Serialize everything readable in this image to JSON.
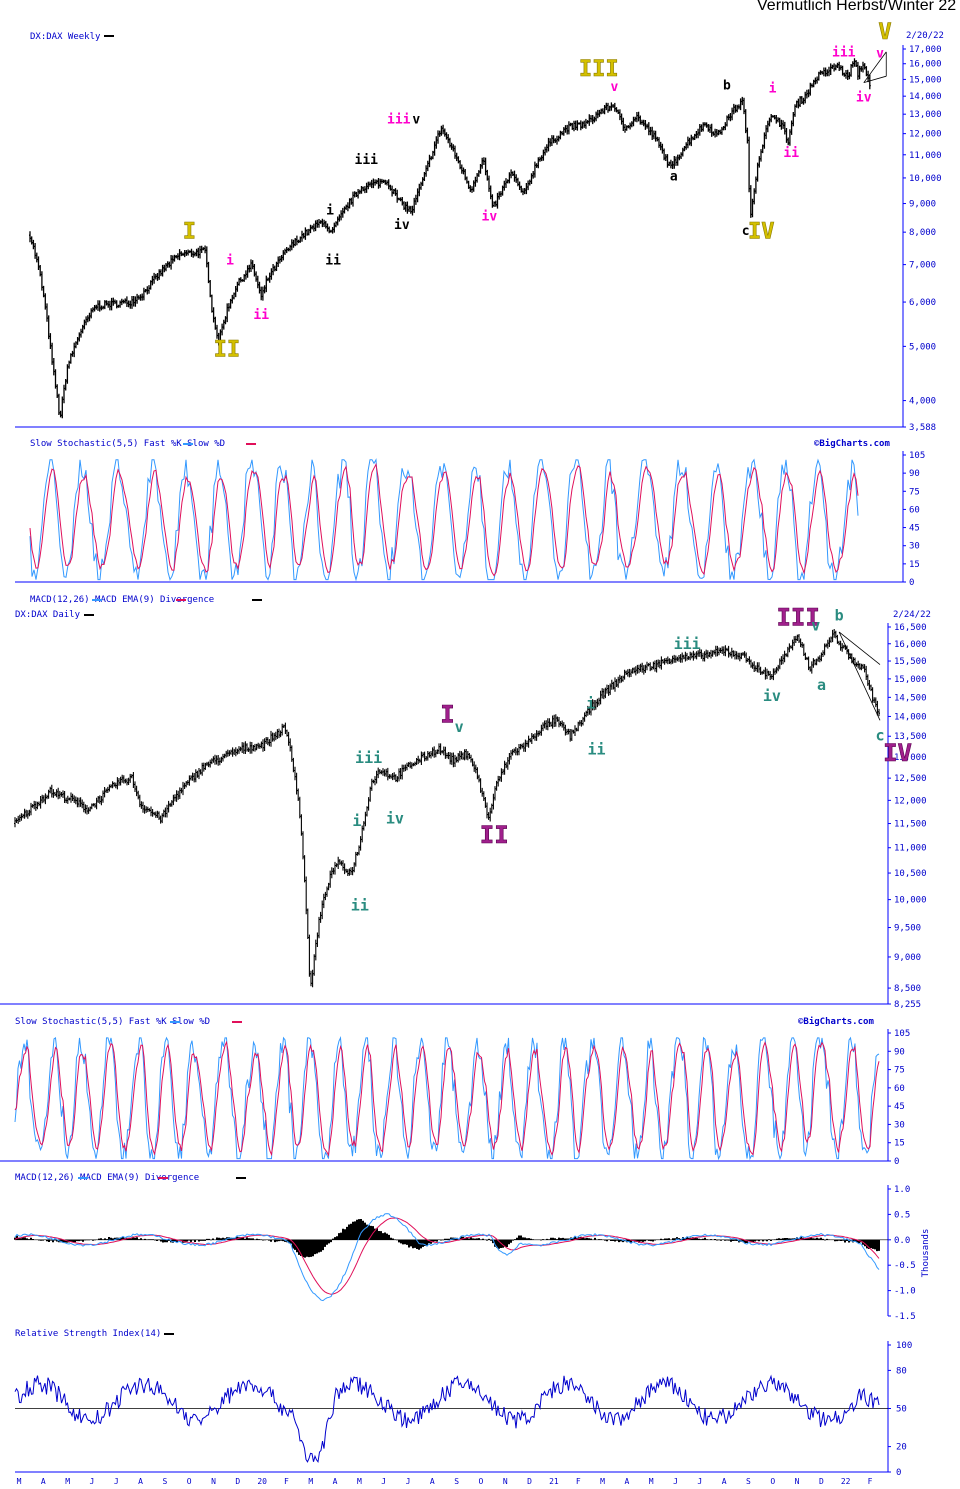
{
  "header": {
    "title": "Vermutlich Herbst/Winter 22"
  },
  "colors": {
    "price": "#000000",
    "fast": "#3399ff",
    "slow": "#e0105a",
    "grid": "#0000ff",
    "axis": "#0000cc",
    "wave_yellow": "#c8b400",
    "wave_magenta": "#ff00cc",
    "wave_teal": "#2a8c80",
    "wave_purple": "#a0208c"
  },
  "chart_data": [
    {
      "type": "line",
      "title": "DX:DAX Weekly",
      "date": "2/20/22",
      "scale": "log",
      "ylim": [
        3588,
        17000
      ],
      "y_ticks": [
        "17,000",
        "16,000",
        "15,000",
        "14,000",
        "13,000",
        "12,000",
        "11,000",
        "10,000",
        "9,000",
        "8,000",
        "7,000",
        "6,000",
        "5,000",
        "4,000",
        "3,588"
      ],
      "x_start": 2008.7,
      "x_end": 2022.14,
      "series": [
        {
          "values": [
            [
              2008.7,
              7900
            ],
            [
              2008.85,
              6800
            ],
            [
              2008.95,
              5800
            ],
            [
              2009.05,
              4700
            ],
            [
              2009.18,
              3700
            ],
            [
              2009.3,
              4600
            ],
            [
              2009.5,
              5300
            ],
            [
              2009.75,
              5900
            ],
            [
              2010.0,
              5950
            ],
            [
              2010.3,
              6000
            ],
            [
              2010.5,
              6200
            ],
            [
              2010.85,
              6900
            ],
            [
              2011.1,
              7300
            ],
            [
              2011.5,
              7400
            ],
            [
              2011.62,
              5700
            ],
            [
              2011.72,
              5100
            ],
            [
              2011.85,
              5800
            ],
            [
              2012.0,
              6400
            ],
            [
              2012.25,
              7000
            ],
            [
              2012.4,
              6100
            ],
            [
              2012.5,
              6600
            ],
            [
              2012.8,
              7400
            ],
            [
              2013.0,
              7800
            ],
            [
              2013.4,
              8400
            ],
            [
              2013.5,
              7900
            ],
            [
              2013.8,
              9000
            ],
            [
              2014.0,
              9600
            ],
            [
              2014.4,
              9900
            ],
            [
              2014.6,
              9100
            ],
            [
              2014.8,
              8700
            ],
            [
              2015.0,
              10000
            ],
            [
              2015.28,
              12300
            ],
            [
              2015.5,
              11000
            ],
            [
              2015.75,
              9500
            ],
            [
              2015.95,
              10800
            ],
            [
              2016.1,
              8800
            ],
            [
              2016.4,
              10200
            ],
            [
              2016.6,
              9300
            ],
            [
              2016.8,
              10600
            ],
            [
              2017.0,
              11500
            ],
            [
              2017.3,
              12300
            ],
            [
              2017.6,
              12500
            ],
            [
              2017.85,
              13200
            ],
            [
              2018.05,
              13500
            ],
            [
              2018.2,
              12200
            ],
            [
              2018.4,
              12900
            ],
            [
              2018.7,
              11800
            ],
            [
              2018.95,
              10400
            ],
            [
              2019.2,
              11500
            ],
            [
              2019.5,
              12500
            ],
            [
              2019.7,
              11900
            ],
            [
              2019.95,
              13200
            ],
            [
              2020.1,
              13700
            ],
            [
              2020.18,
              11500
            ],
            [
              2020.22,
              8400
            ],
            [
              2020.35,
              10700
            ],
            [
              2020.5,
              12400
            ],
            [
              2020.6,
              13000
            ],
            [
              2020.75,
              12300
            ],
            [
              2020.82,
              11500
            ],
            [
              2020.95,
              13500
            ],
            [
              2021.1,
              14000
            ],
            [
              2021.3,
              15200
            ],
            [
              2021.5,
              15600
            ],
            [
              2021.62,
              15900
            ],
            [
              2021.78,
              15100
            ],
            [
              2021.88,
              16200
            ],
            [
              2021.95,
              15300
            ],
            [
              2022.02,
              16000
            ],
            [
              2022.1,
              15300
            ],
            [
              2022.14,
              14500
            ]
          ]
        }
      ],
      "annotations": [
        {
          "text": "I",
          "t": 2011.25,
          "v": 7800,
          "style": "yellow-lg"
        },
        {
          "text": "II",
          "t": 2011.85,
          "v": 4800,
          "style": "yellow-lg"
        },
        {
          "text": "III",
          "t": 2017.8,
          "v": 15200,
          "style": "yellow-lg"
        },
        {
          "text": "IV",
          "t": 2020.4,
          "v": 7800,
          "style": "yellow-lg"
        },
        {
          "text": "V",
          "t": 2022.38,
          "v": 17700,
          "style": "yellow-lg"
        },
        {
          "text": "i",
          "t": 2011.9,
          "v": 7000,
          "style": "magenta"
        },
        {
          "text": "ii",
          "t": 2012.4,
          "v": 5600,
          "style": "magenta"
        },
        {
          "text": "iii",
          "t": 2014.6,
          "v": 12500,
          "style": "magenta"
        },
        {
          "text": "iv",
          "t": 2016.05,
          "v": 8400,
          "style": "magenta"
        },
        {
          "text": "v",
          "t": 2018.05,
          "v": 14300,
          "style": "magenta"
        },
        {
          "text": "i",
          "t": 2020.58,
          "v": 14200,
          "style": "magenta"
        },
        {
          "text": "ii",
          "t": 2020.88,
          "v": 10900,
          "style": "magenta"
        },
        {
          "text": "iii",
          "t": 2021.72,
          "v": 16500,
          "style": "magenta"
        },
        {
          "text": "iv",
          "t": 2022.04,
          "v": 13700,
          "style": "magenta"
        },
        {
          "text": "v",
          "t": 2022.3,
          "v": 16400,
          "style": "magenta"
        },
        {
          "text": "i",
          "t": 2013.5,
          "v": 8600,
          "style": "black"
        },
        {
          "text": "ii",
          "t": 2013.55,
          "v": 7000,
          "style": "black"
        },
        {
          "text": "iii",
          "t": 2014.08,
          "v": 10600,
          "style": "black"
        },
        {
          "text": "iv",
          "t": 2014.65,
          "v": 8100,
          "style": "black"
        },
        {
          "text": "v",
          "t": 2014.88,
          "v": 12500,
          "style": "black"
        },
        {
          "text": "a",
          "t": 2019.0,
          "v": 9900,
          "style": "black"
        },
        {
          "text": "b",
          "t": 2019.85,
          "v": 14400,
          "style": "black"
        },
        {
          "text": "c",
          "t": 2020.15,
          "v": 7900,
          "style": "black"
        }
      ]
    },
    {
      "type": "line",
      "title": "Slow Stochastic(5,5) Fast %K Slow %D",
      "legend": [
        "Fast %K",
        "Slow %D"
      ],
      "source": "©BigCharts.com",
      "ylim": [
        0,
        105
      ],
      "y_ticks": [
        "105",
        "90",
        "75",
        "60",
        "45",
        "30",
        "15",
        "0"
      ]
    },
    {
      "type": "line",
      "title": "DX:DAX Daily",
      "date": "2/24/22",
      "scale": "log",
      "ylim": [
        8255,
        16500
      ],
      "y_ticks": [
        "16,500",
        "16,000",
        "15,500",
        "15,000",
        "14,500",
        "14,000",
        "13,500",
        "13,000",
        "12,500",
        "12,000",
        "11,500",
        "11,000",
        "10,500",
        "10,000",
        "9,500",
        "9,000",
        "8,500",
        "8,255"
      ],
      "macd_header": "MACD(12,26) MACD EMA(9) Divergence",
      "x_start": 2019.2,
      "x_end": 2022.16,
      "series": [
        {
          "values": [
            [
              2019.2,
              11500
            ],
            [
              2019.32,
              12200
            ],
            [
              2019.4,
              12000
            ],
            [
              2019.45,
              11800
            ],
            [
              2019.55,
              12400
            ],
            [
              2019.6,
              12500
            ],
            [
              2019.63,
              11900
            ],
            [
              2019.7,
              11600
            ],
            [
              2019.75,
              12100
            ],
            [
              2019.85,
              12800
            ],
            [
              2019.98,
              13200
            ],
            [
              2020.05,
              13300
            ],
            [
              2020.12,
              13700
            ],
            [
              2020.14,
              13300
            ],
            [
              2020.17,
              12000
            ],
            [
              2020.19,
              10500
            ],
            [
              2020.21,
              8450
            ],
            [
              2020.24,
              9600
            ],
            [
              2020.27,
              10300
            ],
            [
              2020.3,
              10700
            ],
            [
              2020.35,
              10500
            ],
            [
              2020.38,
              11100
            ],
            [
              2020.42,
              12400
            ],
            [
              2020.45,
              12700
            ],
            [
              2020.5,
              12500
            ],
            [
              2020.55,
              12800
            ],
            [
              2020.6,
              13000
            ],
            [
              2020.65,
              13200
            ],
            [
              2020.7,
              12900
            ],
            [
              2020.75,
              13100
            ],
            [
              2020.78,
              12600
            ],
            [
              2020.82,
              11600
            ],
            [
              2020.85,
              12400
            ],
            [
              2020.9,
              13100
            ],
            [
              2020.95,
              13300
            ],
            [
              2021.0,
              13700
            ],
            [
              2021.05,
              13900
            ],
            [
              2021.1,
              13500
            ],
            [
              2021.15,
              14000
            ],
            [
              2021.2,
              14500
            ],
            [
              2021.3,
              15200
            ],
            [
              2021.4,
              15400
            ],
            [
              2021.45,
              15600
            ],
            [
              2021.5,
              15600
            ],
            [
              2021.58,
              15700
            ],
            [
              2021.63,
              15800
            ],
            [
              2021.7,
              15600
            ],
            [
              2021.75,
              15200
            ],
            [
              2021.79,
              15100
            ],
            [
              2021.83,
              15600
            ],
            [
              2021.88,
              16200
            ],
            [
              2021.92,
              15300
            ],
            [
              2021.96,
              15700
            ],
            [
              2022.0,
              16300
            ],
            [
              2022.03,
              15900
            ],
            [
              2022.07,
              15500
            ],
            [
              2022.11,
              15200
            ],
            [
              2022.13,
              14600
            ],
            [
              2022.16,
              14000
            ]
          ]
        }
      ],
      "annotations": [
        {
          "text": "III",
          "t": 2021.88,
          "v": 16550,
          "style": "purple-lg"
        },
        {
          "text": "v",
          "t": 2021.94,
          "v": 16400,
          "style": "teal"
        },
        {
          "text": "b",
          "t": 2022.02,
          "v": 16700,
          "style": "teal"
        },
        {
          "text": "iii",
          "t": 2021.5,
          "v": 15850,
          "style": "teal"
        },
        {
          "text": "iv",
          "t": 2021.79,
          "v": 14400,
          "style": "teal"
        },
        {
          "text": "a",
          "t": 2021.96,
          "v": 14700,
          "style": "teal"
        },
        {
          "text": "c",
          "t": 2022.16,
          "v": 13400,
          "style": "teal"
        },
        {
          "text": "IV",
          "t": 2022.22,
          "v": 12900,
          "style": "purple-lg"
        },
        {
          "text": "I",
          "t": 2020.68,
          "v": 13850,
          "style": "purple-lg"
        },
        {
          "text": "v",
          "t": 2020.72,
          "v": 13600,
          "style": "teal"
        },
        {
          "text": "II",
          "t": 2020.84,
          "v": 11100,
          "style": "purple-lg"
        },
        {
          "text": "i",
          "t": 2021.17,
          "v": 14200,
          "style": "teal"
        },
        {
          "text": "ii",
          "t": 2021.19,
          "v": 13050,
          "style": "teal"
        },
        {
          "text": "iii",
          "t": 2020.41,
          "v": 12850,
          "style": "teal"
        },
        {
          "text": "iv",
          "t": 2020.5,
          "v": 11500,
          "style": "teal"
        },
        {
          "text": "i",
          "t": 2020.37,
          "v": 11450,
          "style": "teal"
        },
        {
          "text": "ii",
          "t": 2020.38,
          "v": 9800,
          "style": "teal"
        }
      ]
    },
    {
      "type": "line",
      "title": "Slow Stochastic(5,5) Fast %K Slow %D",
      "legend": [
        "Fast %K",
        "Slow %D"
      ],
      "source": "©BigCharts.com",
      "ylim": [
        0,
        105
      ],
      "y_ticks": [
        "105",
        "90",
        "75",
        "60",
        "45",
        "30",
        "15",
        "0"
      ]
    },
    {
      "type": "line",
      "title": "MACD(12,26) MACD EMA(9) Divergence",
      "legend": [
        "MACD(12,26)",
        "MACD EMA(9)",
        "Divergence"
      ],
      "ylabel": "Thousands",
      "ylim": [
        -1.5,
        1.0
      ],
      "y_ticks": [
        "1.0",
        "0.5",
        "0.0",
        "-0.5",
        "-1.0",
        "-1.5"
      ]
    },
    {
      "type": "line",
      "title": "Relative Strength Index(14)",
      "ylim": [
        0,
        100
      ],
      "y_ticks": [
        "100",
        "80",
        "50",
        "20",
        "0"
      ],
      "x_ticks": [
        "M",
        "A",
        "M",
        "J",
        "J",
        "A",
        "S",
        "O",
        "N",
        "D",
        "20",
        "F",
        "M",
        "A",
        "M",
        "J",
        "J",
        "A",
        "S",
        "O",
        "N",
        "D",
        "21",
        "F",
        "M",
        "A",
        "M",
        "J",
        "J",
        "A",
        "S",
        "O",
        "N",
        "D",
        "22",
        "F"
      ]
    }
  ]
}
